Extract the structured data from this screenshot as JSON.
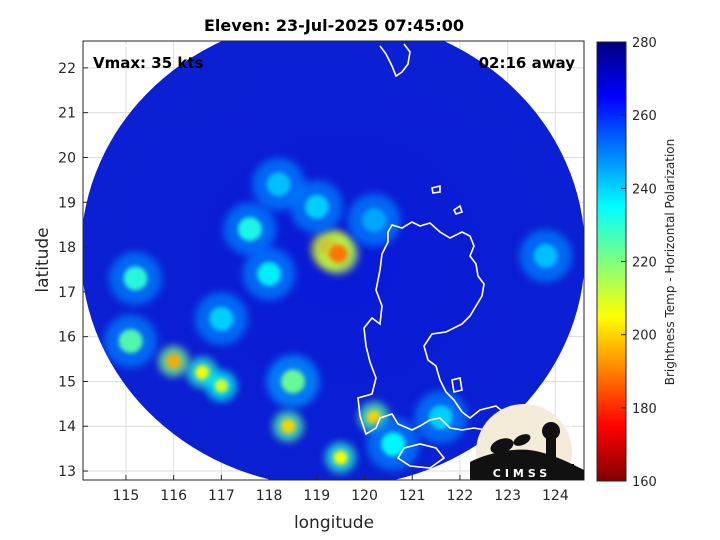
{
  "title": "Eleven: 23-Jul-2025 07:45:00",
  "vmax_label": "Vmax: 35 kts",
  "time_away_label": "02:16 away",
  "x_axis": {
    "label": "longitude",
    "range": [
      114.1,
      124.6
    ],
    "ticks": [
      115,
      116,
      117,
      118,
      119,
      120,
      121,
      122,
      123,
      124
    ]
  },
  "y_axis": {
    "label": "latitude",
    "range": [
      12.8,
      22.6
    ],
    "ticks": [
      13,
      14,
      15,
      16,
      17,
      18,
      19,
      20,
      21,
      22
    ]
  },
  "colorbar": {
    "label": "Brightness Temp - Horizontal Polarization",
    "range": [
      160,
      280
    ],
    "ticks": [
      160,
      180,
      200,
      220,
      240,
      260,
      280
    ],
    "colormap": "jet"
  },
  "logo": {
    "text": "CIMSS"
  },
  "chart_data": {
    "type": "heatmap",
    "title": "Eleven: 23-Jul-2025 07:45:00",
    "xlabel": "longitude",
    "ylabel": "latitude",
    "xlim": [
      114.1,
      124.6
    ],
    "ylim": [
      12.8,
      22.6
    ],
    "value_range": [
      160,
      280
    ],
    "background_value": 258,
    "storm_center": {
      "lon": 119.3,
      "lat": 17.9
    },
    "features": [
      {
        "kind": "core",
        "lon": 119.3,
        "lat": 17.95,
        "value": 182
      },
      {
        "kind": "core",
        "lon": 119.45,
        "lat": 17.85,
        "value": 188
      },
      {
        "kind": "band",
        "lon": 116.0,
        "lat": 15.45,
        "value": 195
      },
      {
        "kind": "band",
        "lon": 116.6,
        "lat": 15.2,
        "value": 205
      },
      {
        "kind": "band",
        "lon": 117.0,
        "lat": 14.9,
        "value": 210
      },
      {
        "kind": "band",
        "lon": 118.4,
        "lat": 14.0,
        "value": 200
      },
      {
        "kind": "band",
        "lon": 120.2,
        "lat": 14.2,
        "value": 200
      },
      {
        "kind": "band",
        "lon": 119.5,
        "lat": 13.3,
        "value": 205
      },
      {
        "kind": "band",
        "lon": 115.1,
        "lat": 15.9,
        "value": 225
      },
      {
        "kind": "band",
        "lon": 118.5,
        "lat": 15.0,
        "value": 222
      },
      {
        "kind": "band",
        "lon": 115.2,
        "lat": 17.3,
        "value": 230
      },
      {
        "kind": "band",
        "lon": 117.6,
        "lat": 18.4,
        "value": 232
      },
      {
        "kind": "band",
        "lon": 118.0,
        "lat": 17.4,
        "value": 236
      },
      {
        "kind": "band",
        "lon": 119.0,
        "lat": 18.9,
        "value": 240
      },
      {
        "kind": "band",
        "lon": 118.2,
        "lat": 19.4,
        "value": 242
      },
      {
        "kind": "band",
        "lon": 120.6,
        "lat": 13.6,
        "value": 235
      },
      {
        "kind": "band",
        "lon": 121.6,
        "lat": 14.2,
        "value": 240
      },
      {
        "kind": "band",
        "lon": 123.8,
        "lat": 17.8,
        "value": 242
      },
      {
        "kind": "band",
        "lon": 120.2,
        "lat": 18.6,
        "value": 245
      },
      {
        "kind": "band",
        "lon": 117.0,
        "lat": 16.4,
        "value": 240
      }
    ]
  }
}
